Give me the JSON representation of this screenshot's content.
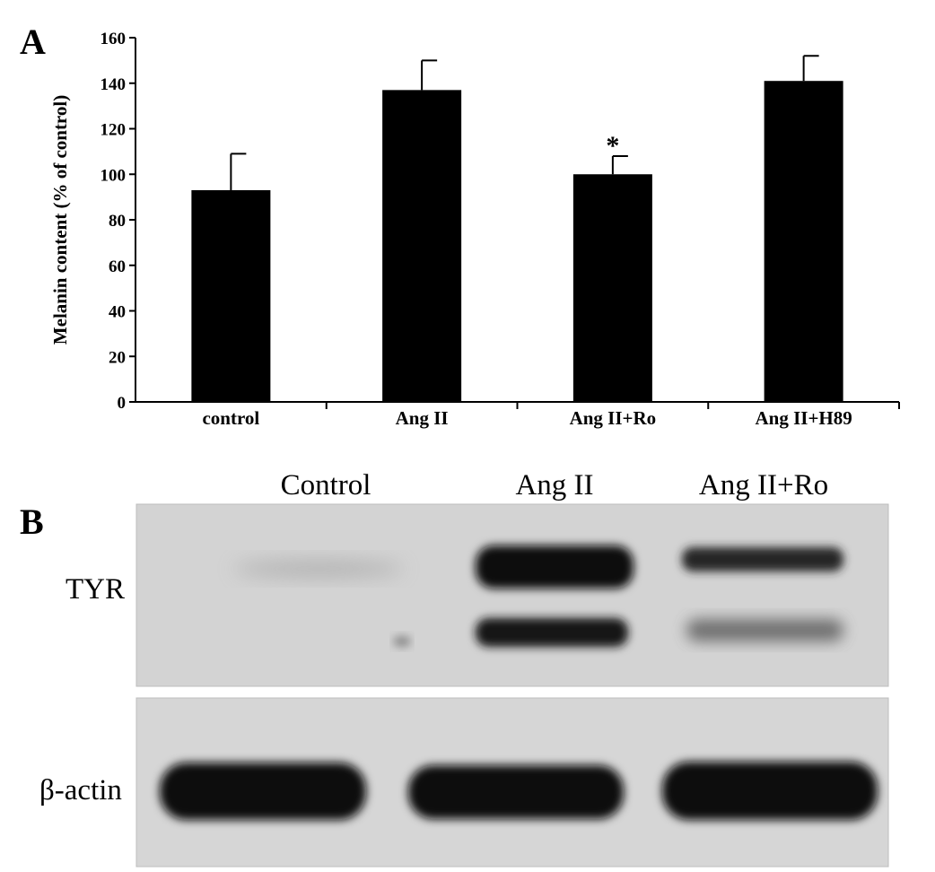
{
  "panel_a_label": "A",
  "panel_b_label": "B",
  "chart_data": {
    "type": "bar",
    "title": "",
    "xlabel": "",
    "ylabel": "Melanin content (% of control)",
    "categories": [
      "control",
      "Ang II",
      "Ang II+Ro",
      "Ang II+H89"
    ],
    "series": [
      {
        "values": [
          93,
          137,
          100,
          141
        ],
        "errors": [
          16,
          13,
          8,
          11
        ]
      }
    ],
    "significance": [
      "",
      "",
      "*",
      ""
    ],
    "ylim": [
      0,
      160
    ],
    "yticks": [
      0,
      20,
      40,
      60,
      80,
      100,
      120,
      140,
      160
    ],
    "grid": false,
    "colors": {
      "bar": "#000000"
    }
  },
  "western_blot": {
    "lanes": [
      "Control",
      "Ang II",
      "Ang II+Ro"
    ],
    "rows": [
      "TYR",
      "β-actin"
    ],
    "colors": {
      "background": "#d4d4d4",
      "band": "#0e0e0e"
    }
  }
}
